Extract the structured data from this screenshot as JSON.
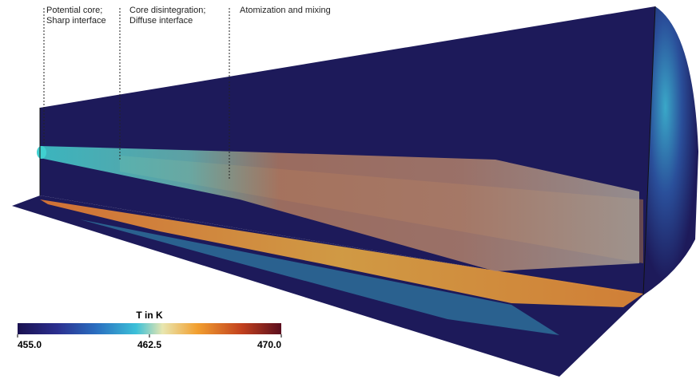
{
  "annotations": [
    {
      "lines": [
        "Potential core;",
        "Sharp interface"
      ]
    },
    {
      "lines": [
        "Core disintegration;",
        "Diffuse interface"
      ]
    },
    {
      "lines": [
        "Atomization and mixing"
      ]
    }
  ],
  "colorbar": {
    "title": "T in K",
    "range": [
      455,
      470
    ],
    "ticks": [
      {
        "value": 455,
        "label": "455.0"
      },
      {
        "value": 462.5,
        "label": "462.5"
      },
      {
        "value": 470,
        "label": "470.0"
      }
    ]
  }
}
